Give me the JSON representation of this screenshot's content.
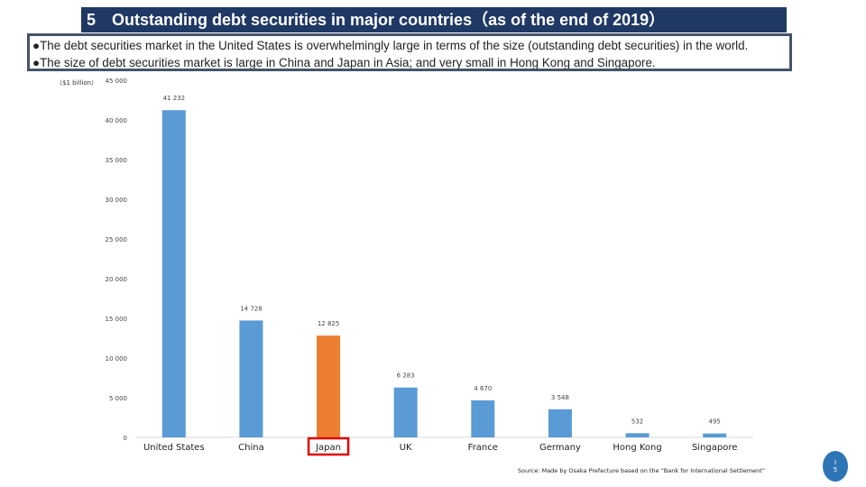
{
  "slide": {
    "title": "5　Outstanding debt securities in major countries（as of the end of 2019）",
    "bullets": [
      "●The debt securities market in the United States is overwhelmingly large in terms of the size (outstanding debt securities) in the world.",
      "●The size of debt securities market is large in China and Japan in Asia; and very small in Hong Kong and Singapore."
    ],
    "unit_label": "（$1 billion）",
    "source": "Source: Made by Osaka Prefecture based on the “Bank for International Settlement”",
    "page_number": "I\n5"
  },
  "colors": {
    "title_bg": "#1f3864",
    "bar_default": "#5b9bd5",
    "bar_highlight": "#ed7d31",
    "highlight_box": "#e00000"
  },
  "chart_data": {
    "type": "bar",
    "title": "",
    "xlabel": "",
    "ylabel": "",
    "categories": [
      "United States",
      "China",
      "Japan",
      "UK",
      "France",
      "Germany",
      "Hong Kong",
      "Singapore"
    ],
    "values": [
      41232,
      14728,
      12825,
      6283,
      4670,
      3548,
      532,
      495
    ],
    "value_labels": [
      "41 232",
      "14 728",
      "12 825",
      "6 283",
      "4 670",
      "3 548",
      "532",
      "495"
    ],
    "highlight": "Japan",
    "ylim": [
      0,
      45000
    ],
    "yticks": [
      0,
      5000,
      10000,
      15000,
      20000,
      25000,
      30000,
      35000,
      40000,
      45000
    ],
    "ytick_labels": [
      "0",
      "5 000",
      "10 000",
      "15 000",
      "20 000",
      "25 000",
      "30 000",
      "35 000",
      "40 000",
      "45 000"
    ],
    "grid": false,
    "legend": "none"
  }
}
